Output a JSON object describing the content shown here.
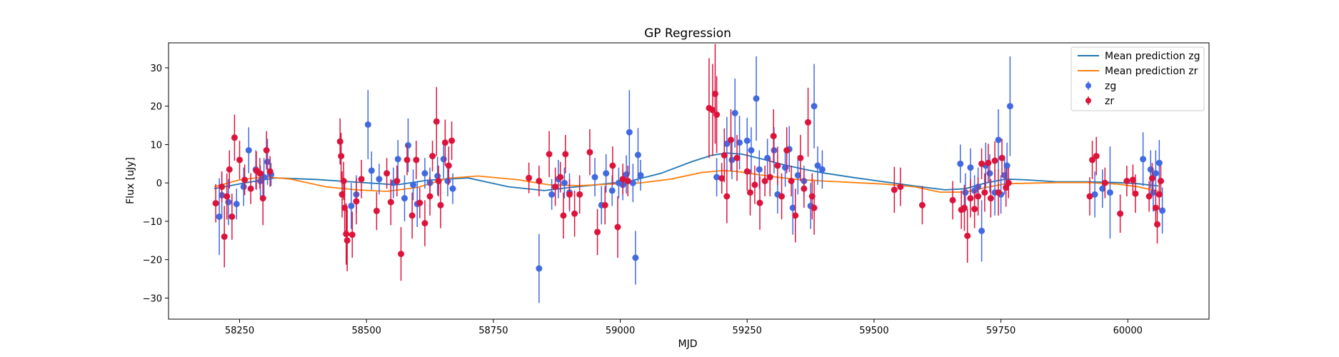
{
  "chart_data": {
    "type": "scatter",
    "title": "GP Regression",
    "xlabel": "MJD",
    "ylabel": "Flux [uJy]",
    "xlim": [
      58110,
      60160
    ],
    "ylim": [
      -35.5,
      36.5
    ],
    "xticks": [
      58250,
      58500,
      58750,
      59000,
      59250,
      59500,
      59750,
      60000
    ],
    "yticks": [
      -30,
      -20,
      -10,
      0,
      10,
      20,
      30
    ],
    "legend_position": "top-right",
    "colors": {
      "zg_points": "#4169e1",
      "zr_points": "#dc143c",
      "mean_zg": "#1f77b4",
      "mean_zr": "#ff7f0e"
    },
    "mean_curves": [
      {
        "name": "Mean prediction zg",
        "x": [
          58200,
          58260,
          58320,
          58400,
          58480,
          58560,
          58620,
          58700,
          58780,
          58850,
          58900,
          58960,
          59020,
          59080,
          59140,
          59180,
          59210,
          59240,
          59280,
          59320,
          59360,
          59400,
          59460,
          59520,
          59580,
          59640,
          59680,
          59720,
          59760,
          59800,
          59860,
          59920,
          59980,
          60020,
          60060
        ],
        "y": [
          -1.5,
          0,
          1.3,
          0.9,
          0.2,
          -0.5,
          0.7,
          1.3,
          -1,
          -2,
          -1.2,
          -0.4,
          0.5,
          2.5,
          5.5,
          7.2,
          7.8,
          7.5,
          6.2,
          4.8,
          3.6,
          2.6,
          1.4,
          0.3,
          -0.8,
          -1.8,
          -1.5,
          0,
          1,
          0.8,
          0.3,
          0.3,
          0.1,
          -0.2,
          -0.8
        ]
      },
      {
        "name": "Mean prediction zr",
        "x": [
          58200,
          58250,
          58300,
          58350,
          58420,
          58480,
          58540,
          58600,
          58660,
          58720,
          58800,
          58860,
          58920,
          58980,
          59040,
          59100,
          59160,
          59200,
          59230,
          59280,
          59340,
          59400,
          59460,
          59520,
          59580,
          59630,
          59680,
          59720,
          59760,
          59800,
          59860,
          59920,
          59980,
          60020,
          60060
        ],
        "y": [
          -1,
          0.8,
          1.6,
          1,
          -1,
          -1.8,
          -2.2,
          -1.2,
          1.2,
          1.8,
          0.8,
          -0.5,
          -0.7,
          -0.3,
          0,
          1,
          2.7,
          3.2,
          3,
          2,
          1,
          0.5,
          0.1,
          -0.3,
          -1,
          -2.4,
          -2.4,
          -1.2,
          -0.2,
          -0.1,
          0.1,
          0.1,
          -0.3,
          -1,
          -2.2
        ]
      }
    ],
    "series": [
      {
        "name": "zg",
        "points": [
          [
            58210,
            -8.8,
            10
          ],
          [
            58215,
            -3.2,
            6
          ],
          [
            58228,
            -5,
            6
          ],
          [
            58244,
            -5.5,
            4
          ],
          [
            58258,
            -1,
            5
          ],
          [
            58268,
            8.5,
            6
          ],
          [
            58282,
            3.5,
            5
          ],
          [
            58291,
            0.5,
            4
          ],
          [
            58298,
            1.5,
            5
          ],
          [
            58305,
            5.5,
            6
          ],
          [
            58312,
            2.2,
            3
          ],
          [
            58470,
            -6,
            6
          ],
          [
            58480,
            -3,
            5
          ],
          [
            58503,
            15.2,
            9
          ],
          [
            58510,
            3.2,
            5
          ],
          [
            58525,
            1,
            4
          ],
          [
            58553,
            0,
            4
          ],
          [
            58562,
            6.2,
            5
          ],
          [
            58575,
            -4,
            6
          ],
          [
            58582,
            9.8,
            7
          ],
          [
            58592,
            -0.5,
            4
          ],
          [
            58600,
            -5.5,
            6
          ],
          [
            58615,
            2.5,
            4
          ],
          [
            58625,
            0,
            4
          ],
          [
            58640,
            1.8,
            5
          ],
          [
            58652,
            6.2,
            5
          ],
          [
            58660,
            0.5,
            4
          ],
          [
            58670,
            -1.5,
            4
          ],
          [
            58840,
            -22.3,
            9
          ],
          [
            58865,
            -3,
            4
          ],
          [
            58878,
            1,
            5
          ],
          [
            58890,
            0,
            4
          ],
          [
            58900,
            -2.5,
            5
          ],
          [
            58950,
            1.5,
            5
          ],
          [
            58963,
            -5.8,
            5
          ],
          [
            58972,
            2.5,
            5
          ],
          [
            58984,
            -2,
            4
          ],
          [
            58997,
            0,
            4
          ],
          [
            59005,
            -0.5,
            4
          ],
          [
            59012,
            2.2,
            5
          ],
          [
            59018,
            13.2,
            11
          ],
          [
            59025,
            0,
            5
          ],
          [
            59030,
            -19.5,
            7
          ],
          [
            59035,
            7.3,
            7
          ],
          [
            59040,
            2,
            4
          ],
          [
            59190,
            1.5,
            5
          ],
          [
            59210,
            10.2,
            7
          ],
          [
            59220,
            6,
            5
          ],
          [
            59226,
            18.2,
            9
          ],
          [
            59235,
            10.5,
            7
          ],
          [
            59250,
            11,
            6
          ],
          [
            59258,
            8.5,
            6
          ],
          [
            59268,
            22,
            11
          ],
          [
            59274,
            3.5,
            5
          ],
          [
            59290,
            6.5,
            5
          ],
          [
            59303,
            8.5,
            6
          ],
          [
            59310,
            -3,
            5
          ],
          [
            59325,
            4,
            5
          ],
          [
            59333,
            8.8,
            6
          ],
          [
            59340,
            -6.5,
            7
          ],
          [
            59350,
            2,
            5
          ],
          [
            59362,
            0.5,
            4
          ],
          [
            59375,
            -6,
            6
          ],
          [
            59382,
            20,
            11
          ],
          [
            59389,
            4.5,
            5
          ],
          [
            59398,
            3.5,
            5
          ],
          [
            59670,
            5,
            5
          ],
          [
            59680,
            -2.5,
            5
          ],
          [
            59690,
            4,
            5
          ],
          [
            59698,
            -2,
            4
          ],
          [
            59705,
            -1,
            5
          ],
          [
            59712,
            -12.5,
            8
          ],
          [
            59720,
            4.5,
            6
          ],
          [
            59728,
            2.5,
            5
          ],
          [
            59738,
            -2.5,
            6
          ],
          [
            59745,
            11.2,
            8
          ],
          [
            59750,
            -3,
            5
          ],
          [
            59757,
            2,
            5
          ],
          [
            59762,
            4.5,
            6
          ],
          [
            59768,
            20,
            13
          ],
          [
            59935,
            -3,
            6
          ],
          [
            59950,
            -1.5,
            5
          ],
          [
            59965,
            -2.5,
            12
          ],
          [
            60030,
            6.2,
            7
          ],
          [
            60045,
            3.5,
            5
          ],
          [
            60050,
            -2.5,
            5
          ],
          [
            60055,
            2.5,
            6
          ],
          [
            60062,
            5.2,
            6
          ],
          [
            60068,
            -7.2,
            6
          ]
        ]
      },
      {
        "name": "zr",
        "points": [
          [
            58203,
            -5.3,
            5
          ],
          [
            58215,
            -1,
            4
          ],
          [
            58220,
            -14,
            8
          ],
          [
            58225,
            -3.5,
            6
          ],
          [
            58230,
            3.5,
            5
          ],
          [
            58235,
            -8.8,
            6
          ],
          [
            58240,
            11.8,
            6
          ],
          [
            58250,
            6,
            5
          ],
          [
            58260,
            0.8,
            4
          ],
          [
            58272,
            -1.5,
            4
          ],
          [
            58283,
            3.2,
            5
          ],
          [
            58290,
            2.5,
            4
          ],
          [
            58296,
            -4,
            7
          ],
          [
            58303,
            8.5,
            5
          ],
          [
            58310,
            3,
            4
          ],
          [
            58448,
            10.8,
            6
          ],
          [
            58450,
            7,
            6
          ],
          [
            58452,
            -3,
            6
          ],
          [
            58455,
            0.5,
            5
          ],
          [
            58457,
            -6.5,
            7
          ],
          [
            58460,
            -13.3,
            8
          ],
          [
            58462,
            -15,
            8
          ],
          [
            58472,
            -13.5,
            6
          ],
          [
            58480,
            -4.8,
            6
          ],
          [
            58490,
            1,
            5
          ],
          [
            58520,
            -7.3,
            5
          ],
          [
            58540,
            2.5,
            4
          ],
          [
            58548,
            -5,
            6
          ],
          [
            58560,
            0.5,
            4
          ],
          [
            58568,
            -18.5,
            7
          ],
          [
            58580,
            6,
            4
          ],
          [
            58590,
            -8.5,
            6
          ],
          [
            58598,
            6,
            5
          ],
          [
            58605,
            -5.2,
            4
          ],
          [
            58615,
            -10.5,
            6
          ],
          [
            58625,
            -3.5,
            5
          ],
          [
            58630,
            7,
            4
          ],
          [
            58638,
            16,
            9
          ],
          [
            58642,
            0.5,
            4
          ],
          [
            58646,
            -5.8,
            6
          ],
          [
            58655,
            10.5,
            6
          ],
          [
            58662,
            4.5,
            5
          ],
          [
            58668,
            11,
            5
          ],
          [
            58820,
            1.3,
            4
          ],
          [
            58840,
            0.5,
            4
          ],
          [
            58860,
            7.5,
            6
          ],
          [
            58872,
            -1,
            5
          ],
          [
            58882,
            1.5,
            4
          ],
          [
            58888,
            -8.5,
            6
          ],
          [
            58892,
            7.5,
            5
          ],
          [
            58900,
            -3,
            4
          ],
          [
            58910,
            -8,
            6
          ],
          [
            58920,
            -3,
            5
          ],
          [
            58940,
            8,
            6
          ],
          [
            58955,
            -12.8,
            6
          ],
          [
            58970,
            -5.8,
            5
          ],
          [
            58985,
            4.5,
            5
          ],
          [
            58995,
            -11.5,
            8
          ],
          [
            59005,
            1,
            4
          ],
          [
            59015,
            0.5,
            4
          ],
          [
            59175,
            19.5,
            13
          ],
          [
            59182,
            19,
            12
          ],
          [
            59187,
            23.2,
            13
          ],
          [
            59190,
            17.8,
            10
          ],
          [
            59200,
            1.2,
            4
          ],
          [
            59205,
            7.2,
            7
          ],
          [
            59210,
            -3.5,
            7
          ],
          [
            59218,
            11.2,
            8
          ],
          [
            59230,
            6.5,
            6
          ],
          [
            59250,
            3,
            5
          ],
          [
            59256,
            -2.5,
            6
          ],
          [
            59265,
            -0.5,
            5
          ],
          [
            59275,
            -5.2,
            7
          ],
          [
            59285,
            0.5,
            4
          ],
          [
            59295,
            1.5,
            5
          ],
          [
            59302,
            12.2,
            7
          ],
          [
            59310,
            4.5,
            5
          ],
          [
            59318,
            -3.5,
            6
          ],
          [
            59328,
            8.5,
            6
          ],
          [
            59337,
            0.5,
            4
          ],
          [
            59345,
            -8.5,
            7
          ],
          [
            59355,
            6.5,
            6
          ],
          [
            59362,
            -1.5,
            5
          ],
          [
            59370,
            15.8,
            9
          ],
          [
            59378,
            -3.5,
            6
          ],
          [
            59382,
            -6.5,
            7
          ],
          [
            59540,
            -1.8,
            6
          ],
          [
            59552,
            -1,
            5
          ],
          [
            59595,
            -5.8,
            5
          ],
          [
            59655,
            -4.5,
            5
          ],
          [
            59672,
            -7,
            5
          ],
          [
            59678,
            -6.5,
            6
          ],
          [
            59684,
            -13.8,
            7
          ],
          [
            59690,
            -4,
            5
          ],
          [
            59698,
            -6.8,
            5
          ],
          [
            59705,
            -3.5,
            5
          ],
          [
            59712,
            5,
            4
          ],
          [
            59718,
            -2.5,
            5
          ],
          [
            59725,
            5.2,
            5
          ],
          [
            59730,
            -4,
            5
          ],
          [
            59738,
            5.8,
            5
          ],
          [
            59745,
            -2.5,
            6
          ],
          [
            59752,
            6.5,
            5
          ],
          [
            59760,
            -1.2,
            5
          ],
          [
            59765,
            0,
            4
          ],
          [
            59925,
            -3.5,
            5
          ],
          [
            59930,
            6,
            5
          ],
          [
            59938,
            7,
            5
          ],
          [
            59955,
            0,
            4
          ],
          [
            59985,
            -8,
            5
          ],
          [
            59998,
            0.5,
            4
          ],
          [
            60010,
            0.8,
            4
          ],
          [
            60015,
            -2.8,
            5
          ],
          [
            60042,
            -3.5,
            4
          ],
          [
            60048,
            1.2,
            4
          ],
          [
            60055,
            -6.5,
            5
          ],
          [
            60058,
            -10.8,
            5
          ],
          [
            60062,
            -3,
            4
          ],
          [
            60065,
            0.5,
            4
          ]
        ]
      }
    ]
  }
}
